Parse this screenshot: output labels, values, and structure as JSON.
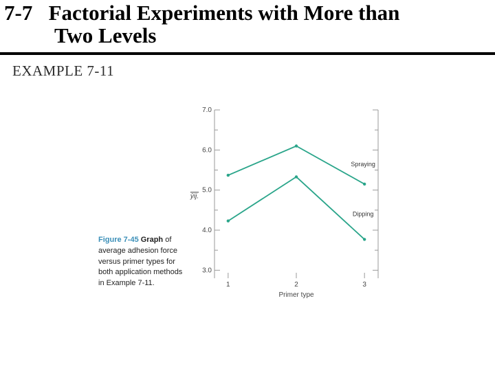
{
  "slide": {
    "title_line1": "7-7   Factorial Experiments with More than",
    "title_line2": "Two Levels",
    "example_label": "EXAMPLE 7-11"
  },
  "caption": {
    "figure_number": "Figure 7-45",
    "figure_word": "Graph",
    "text": "of average adhesion force versus primer types for both application methods in Example 7-11."
  },
  "colors": {
    "series": "#2aa58a",
    "axis": "#999999"
  },
  "chart_data": {
    "type": "line",
    "x": [
      1,
      2,
      3
    ],
    "series": [
      {
        "name": "Spraying",
        "values": [
          5.37,
          6.1,
          5.15
        ]
      },
      {
        "name": "Dipping",
        "values": [
          4.23,
          5.33,
          3.77
        ]
      }
    ],
    "xlabel": "Primer type",
    "ylabel": "ȳij.",
    "ylim": [
      2.8,
      7.0
    ],
    "yticks": [
      "7.0",
      "6.0",
      "5.0",
      "4.0",
      "3.0"
    ],
    "xticks": [
      "1",
      "2",
      "3"
    ],
    "grid": false,
    "legend": "inline labels"
  }
}
